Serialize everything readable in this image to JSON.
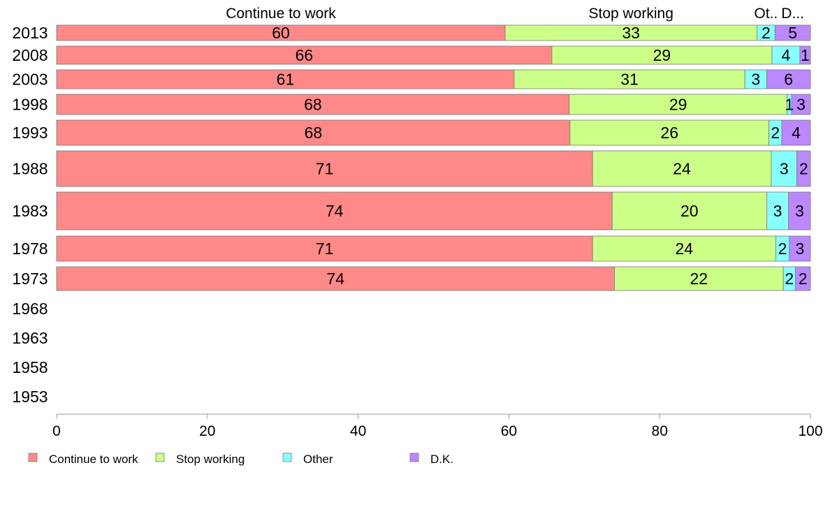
{
  "chart_data": {
    "type": "bar",
    "orientation": "horizontal",
    "stacked": true,
    "categories": [
      "2013",
      "2008",
      "2003",
      "1998",
      "1993",
      "1988",
      "1983",
      "1978",
      "1973",
      "1968",
      "1963",
      "1958",
      "1953"
    ],
    "series": [
      {
        "name": "Continue to work",
        "header": "Continue to work",
        "color": "#FF8888",
        "values": [
          59.5,
          65.7,
          60.7,
          68.0,
          68.1,
          71.1,
          73.7,
          71.1,
          74.0,
          null,
          null,
          null,
          null
        ],
        "labels": [
          "60",
          "66",
          "61",
          "68",
          "68",
          "71",
          "74",
          "71",
          "74",
          "",
          "",
          "",
          ""
        ]
      },
      {
        "name": "Stop working",
        "header": "Stop working",
        "color": "#CCFF88",
        "values": [
          33.4,
          29.2,
          30.6,
          28.9,
          26.4,
          23.7,
          20.5,
          24.3,
          22.4,
          null,
          null,
          null,
          null
        ],
        "labels": [
          "33",
          "29",
          "31",
          "29",
          "26",
          "24",
          "20",
          "24",
          "22",
          "",
          "",
          "",
          ""
        ]
      },
      {
        "name": "Other",
        "header": "Ot..",
        "color": "#88FFFF",
        "values": [
          2.4,
          3.7,
          2.9,
          0.6,
          1.7,
          3.4,
          2.9,
          1.8,
          1.6,
          null,
          null,
          null,
          null
        ],
        "labels": [
          "2",
          "4",
          "3",
          "1",
          "2",
          "3",
          "3",
          "2",
          "2",
          "",
          "",
          "",
          ""
        ]
      },
      {
        "name": "D.K.",
        "header": "D...",
        "color": "#BB88FF",
        "values": [
          4.7,
          1.4,
          5.8,
          2.5,
          3.8,
          1.8,
          2.9,
          2.8,
          2.0,
          null,
          null,
          null,
          null
        ],
        "labels": [
          "5",
          "1",
          "6",
          "3",
          "4",
          "2",
          "3",
          "3",
          "2",
          "",
          "",
          "",
          ""
        ]
      }
    ],
    "xlim": [
      0,
      100
    ],
    "xticks": [
      "0",
      "20",
      "40",
      "60",
      "80",
      "100"
    ],
    "grid": false,
    "legend_position": "bottom-left"
  }
}
